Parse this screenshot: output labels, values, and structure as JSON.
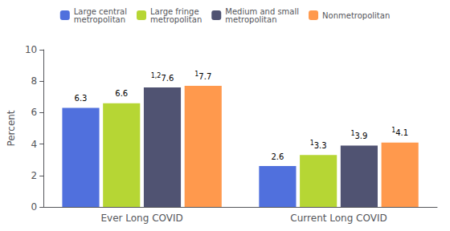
{
  "chart_data": {
    "type": "bar",
    "categories": [
      "Ever Long COVID",
      "Current Long COVID"
    ],
    "series": [
      {
        "name": "Large central\nmetropolitan",
        "values": [
          6.3,
          2.6
        ]
      },
      {
        "name": "Large fringe\nmetropolitan",
        "values": [
          6.6,
          3.3
        ],
        "superscripts": [
          null,
          "1"
        ]
      },
      {
        "name": "Medium and small\nmetropolitan",
        "values": [
          7.6,
          3.9
        ],
        "superscripts": [
          "1,2",
          "1"
        ]
      },
      {
        "name": "Nonmetropolitan",
        "values": [
          7.7,
          4.1
        ],
        "superscripts": [
          "1",
          "1"
        ]
      }
    ],
    "ylabel": "Percent",
    "ylim": [
      0,
      10
    ],
    "yticks": [
      0,
      2,
      4,
      6,
      8,
      10
    ],
    "grid": false,
    "legend": "top",
    "data_labels": true
  }
}
